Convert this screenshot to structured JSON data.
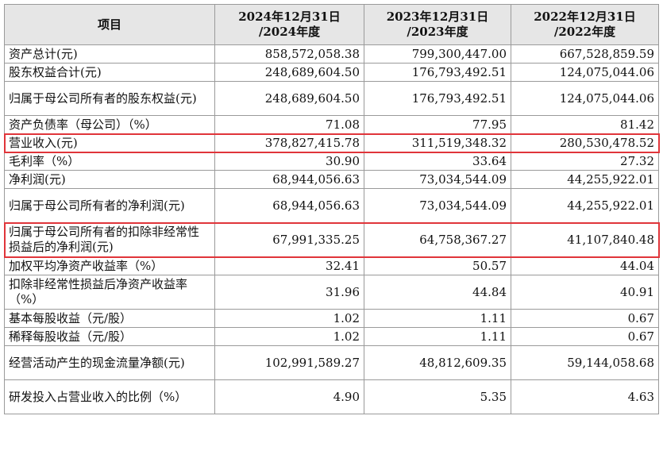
{
  "header": {
    "item": "项目",
    "cols": [
      {
        "line1": "2024年12月31日",
        "line2": "/2024年度"
      },
      {
        "line1": "2023年12月31日",
        "line2": "/2023年度"
      },
      {
        "line1": "2022年12月31日",
        "line2": "/2022年度"
      }
    ]
  },
  "rows": [
    {
      "label": "资产总计(元)",
      "v": [
        "858,572,058.38",
        "799,300,447.00",
        "667,528,859.59"
      ]
    },
    {
      "label": "股东权益合计(元)",
      "v": [
        "248,689,604.50",
        "176,793,492.51",
        "124,075,044.06"
      ]
    },
    {
      "label": "归属于母公司所有者的股东权益(元)",
      "v": [
        "248,689,604.50",
        "176,793,492.51",
        "124,075,044.06"
      ]
    },
    {
      "label": "资产负债率（母公司）（%）",
      "v": [
        "71.08",
        "77.95",
        "81.42"
      ]
    },
    {
      "label": "营业收入(元)",
      "v": [
        "378,827,415.78",
        "311,519,348.32",
        "280,530,478.52"
      ]
    },
    {
      "label": "毛利率（%）",
      "v": [
        "30.90",
        "33.64",
        "27.32"
      ]
    },
    {
      "label": "净利润(元)",
      "v": [
        "68,944,056.63",
        "73,034,544.09",
        "44,255,922.01"
      ]
    },
    {
      "label": "归属于母公司所有者的净利润(元)",
      "v": [
        "68,944,056.63",
        "73,034,544.09",
        "44,255,922.01"
      ]
    },
    {
      "label": "归属于母公司所有者的扣除非经常性损益后的净利润(元)",
      "v": [
        "67,991,335.25",
        "64,758,367.27",
        "41,107,840.48"
      ]
    },
    {
      "label": "加权平均净资产收益率（%）",
      "v": [
        "32.41",
        "50.57",
        "44.04"
      ]
    },
    {
      "label": "扣除非经常性损益后净资产收益率（%）",
      "v": [
        "31.96",
        "44.84",
        "40.91"
      ]
    },
    {
      "label": "基本每股收益（元/股）",
      "v": [
        "1.02",
        "1.11",
        "0.67"
      ]
    },
    {
      "label": "稀释每股收益（元/股）",
      "v": [
        "1.02",
        "1.11",
        "0.67"
      ]
    },
    {
      "label": "经营活动产生的现金流量净额(元)",
      "v": [
        "102,991,589.27",
        "48,812,609.35",
        "59,144,058.68"
      ]
    },
    {
      "label": "研发投入占营业收入的比例（%）",
      "v": [
        "4.90",
        "5.35",
        "4.63"
      ]
    }
  ]
}
